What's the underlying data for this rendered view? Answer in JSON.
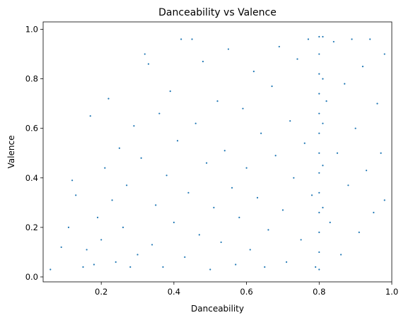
{
  "chart_data": {
    "type": "scatter",
    "title": "Danceability vs Valence",
    "xlabel": "Danceability",
    "ylabel": "Valence",
    "xlim": [
      0.04,
      1.0
    ],
    "ylim": [
      -0.02,
      1.03
    ],
    "xticks": [
      0.2,
      0.4,
      0.6,
      0.8,
      1.0
    ],
    "yticks": [
      0.0,
      0.2,
      0.4,
      0.6,
      0.8,
      1.0
    ],
    "xtick_labels": [
      "0.2",
      "0.4",
      "0.6",
      "0.8",
      "1.0"
    ],
    "ytick_labels": [
      "0.0",
      "0.2",
      "0.4",
      "0.6",
      "0.8",
      "1.0"
    ],
    "grid": false,
    "marker": {
      "color": "#1f77b4",
      "size": "small"
    },
    "series": [
      {
        "points": [
          [
            0.06,
            0.03
          ],
          [
            0.09,
            0.12
          ],
          [
            0.11,
            0.2
          ],
          [
            0.12,
            0.39
          ],
          [
            0.13,
            0.33
          ],
          [
            0.15,
            0.04
          ],
          [
            0.16,
            0.11
          ],
          [
            0.17,
            0.65
          ],
          [
            0.18,
            0.05
          ],
          [
            0.19,
            0.24
          ],
          [
            0.2,
            0.15
          ],
          [
            0.21,
            0.44
          ],
          [
            0.22,
            0.72
          ],
          [
            0.23,
            0.31
          ],
          [
            0.24,
            0.06
          ],
          [
            0.25,
            0.52
          ],
          [
            0.26,
            0.2
          ],
          [
            0.27,
            0.37
          ],
          [
            0.28,
            0.04
          ],
          [
            0.29,
            0.61
          ],
          [
            0.3,
            0.09
          ],
          [
            0.31,
            0.48
          ],
          [
            0.32,
            0.9
          ],
          [
            0.33,
            0.86
          ],
          [
            0.34,
            0.13
          ],
          [
            0.35,
            0.29
          ],
          [
            0.36,
            0.66
          ],
          [
            0.37,
            0.04
          ],
          [
            0.38,
            0.41
          ],
          [
            0.39,
            0.75
          ],
          [
            0.4,
            0.22
          ],
          [
            0.41,
            0.55
          ],
          [
            0.42,
            0.96
          ],
          [
            0.43,
            0.08
          ],
          [
            0.44,
            0.34
          ],
          [
            0.45,
            0.96
          ],
          [
            0.46,
            0.62
          ],
          [
            0.47,
            0.17
          ],
          [
            0.48,
            0.87
          ],
          [
            0.49,
            0.46
          ],
          [
            0.5,
            0.03
          ],
          [
            0.51,
            0.28
          ],
          [
            0.52,
            0.71
          ],
          [
            0.53,
            0.14
          ],
          [
            0.54,
            0.51
          ],
          [
            0.55,
            0.92
          ],
          [
            0.56,
            0.36
          ],
          [
            0.57,
            0.05
          ],
          [
            0.58,
            0.24
          ],
          [
            0.59,
            0.68
          ],
          [
            0.6,
            0.44
          ],
          [
            0.61,
            0.11
          ],
          [
            0.62,
            0.83
          ],
          [
            0.63,
            0.32
          ],
          [
            0.64,
            0.58
          ],
          [
            0.65,
            0.04
          ],
          [
            0.66,
            0.19
          ],
          [
            0.67,
            0.77
          ],
          [
            0.68,
            0.49
          ],
          [
            0.69,
            0.93
          ],
          [
            0.7,
            0.27
          ],
          [
            0.71,
            0.06
          ],
          [
            0.72,
            0.63
          ],
          [
            0.73,
            0.4
          ],
          [
            0.74,
            0.88
          ],
          [
            0.75,
            0.15
          ],
          [
            0.76,
            0.54
          ],
          [
            0.77,
            0.96
          ],
          [
            0.78,
            0.33
          ],
          [
            0.79,
            0.04
          ],
          [
            0.8,
            0.97
          ],
          [
            0.8,
            0.9
          ],
          [
            0.8,
            0.82
          ],
          [
            0.8,
            0.74
          ],
          [
            0.8,
            0.66
          ],
          [
            0.8,
            0.58
          ],
          [
            0.8,
            0.5
          ],
          [
            0.8,
            0.42
          ],
          [
            0.8,
            0.34
          ],
          [
            0.8,
            0.26
          ],
          [
            0.8,
            0.18
          ],
          [
            0.8,
            0.1
          ],
          [
            0.8,
            0.03
          ],
          [
            0.81,
            0.97
          ],
          [
            0.81,
            0.8
          ],
          [
            0.81,
            0.62
          ],
          [
            0.81,
            0.45
          ],
          [
            0.81,
            0.28
          ],
          [
            0.82,
            0.71
          ],
          [
            0.83,
            0.22
          ],
          [
            0.84,
            0.95
          ],
          [
            0.85,
            0.5
          ],
          [
            0.86,
            0.09
          ],
          [
            0.87,
            0.78
          ],
          [
            0.88,
            0.37
          ],
          [
            0.89,
            0.96
          ],
          [
            0.9,
            0.6
          ],
          [
            0.91,
            0.18
          ],
          [
            0.92,
            0.85
          ],
          [
            0.93,
            0.43
          ],
          [
            0.94,
            0.96
          ],
          [
            0.95,
            0.26
          ],
          [
            0.96,
            0.7
          ],
          [
            0.97,
            0.5
          ],
          [
            0.98,
            0.31
          ],
          [
            0.98,
            0.9
          ]
        ]
      }
    ]
  }
}
